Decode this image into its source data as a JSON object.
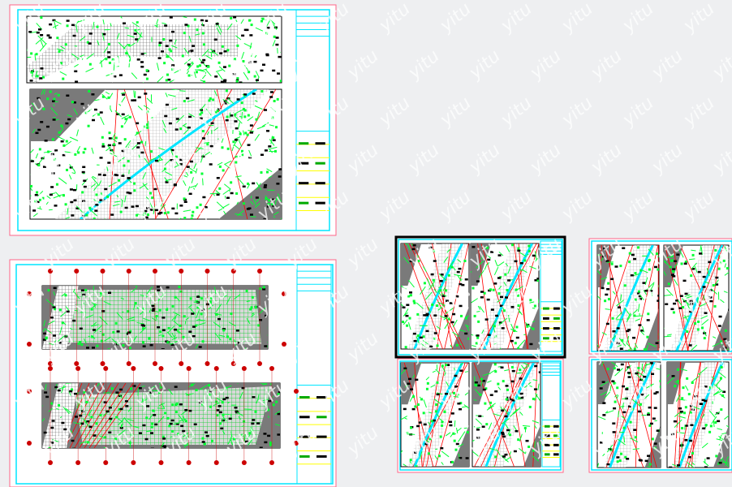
{
  "watermark": {
    "text": "yitu"
  },
  "colors": {
    "background": "#eeeff1",
    "sheet_border": "#00e5ff",
    "sheet_outer": "#ff6688",
    "linework_green": "#00ff33",
    "linework_black": "#000000",
    "roads_red": "#ff0000",
    "shaded_area": "#7a7a7a",
    "titleblock_yellow": "#ffff00"
  },
  "sheets": [
    {
      "id": "sheet-1",
      "panels": 2,
      "layout": "stacked"
    },
    {
      "id": "sheet-2",
      "panels": 2,
      "layout": "stacked"
    },
    {
      "id": "sheet-3",
      "panels": 2,
      "layout": "side-by-side",
      "selected": true
    },
    {
      "id": "sheet-4",
      "panels": 2,
      "layout": "side-by-side"
    },
    {
      "id": "sheet-5",
      "panels": 2,
      "layout": "side-by-side"
    },
    {
      "id": "sheet-6",
      "panels": 2,
      "layout": "side-by-side"
    }
  ]
}
